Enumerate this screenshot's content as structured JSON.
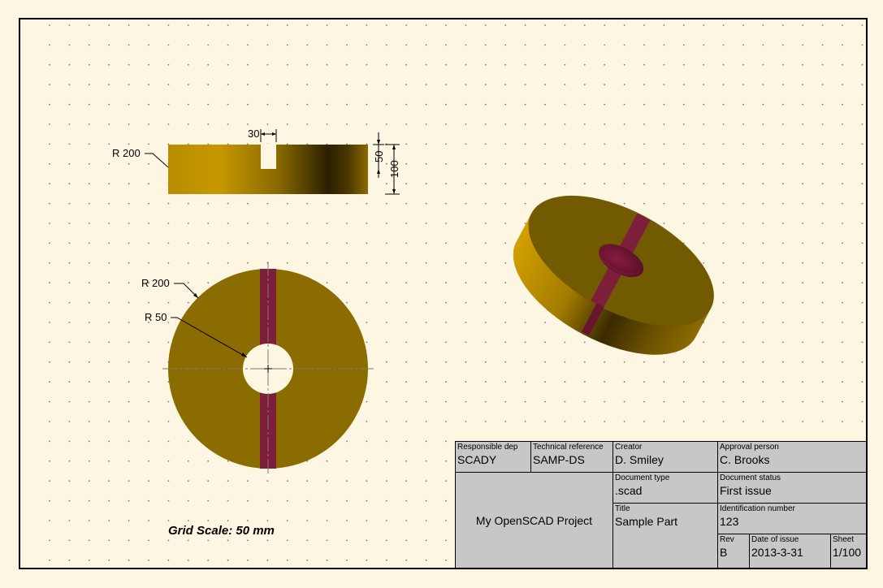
{
  "drawing": {
    "grid_scale": "Grid Scale: 50 mm",
    "colors": {
      "background": "#fdf6e3",
      "part_face": "#8a6c00",
      "part_side_light": "#c99a00",
      "part_dark": "#2a1d00",
      "slot": "#7d1e3a",
      "dims": "#000000",
      "title_block": "#c7c7c7"
    },
    "front_view": {
      "radius_label": "R 200",
      "slot_width": "30",
      "slot_depth": "50",
      "height": "100"
    },
    "top_view": {
      "outer_radius_label": "R 200",
      "inner_radius_label": "R 50"
    }
  },
  "title_block": {
    "responsible_dep": {
      "label": "Responsible dep",
      "value": "SCADY"
    },
    "technical_reference": {
      "label": "Technical reference",
      "value": "SAMP-DS"
    },
    "creator": {
      "label": "Creator",
      "value": "D. Smiley"
    },
    "approval_person": {
      "label": "Approval person",
      "value": "C. Brooks"
    },
    "project_name": "My OpenSCAD Project",
    "document_type": {
      "label": "Document type",
      "value": ".scad"
    },
    "document_status": {
      "label": "Document status",
      "value": "First issue"
    },
    "title": {
      "label": "Title",
      "value": "Sample Part"
    },
    "identification_number": {
      "label": "Identification number",
      "value": "123"
    },
    "rev": {
      "label": "Rev",
      "value": "B"
    },
    "date_of_issue": {
      "label": "Date of issue",
      "value": "2013-3-31"
    },
    "sheet": {
      "label": "Sheet",
      "value": "1/100"
    }
  }
}
